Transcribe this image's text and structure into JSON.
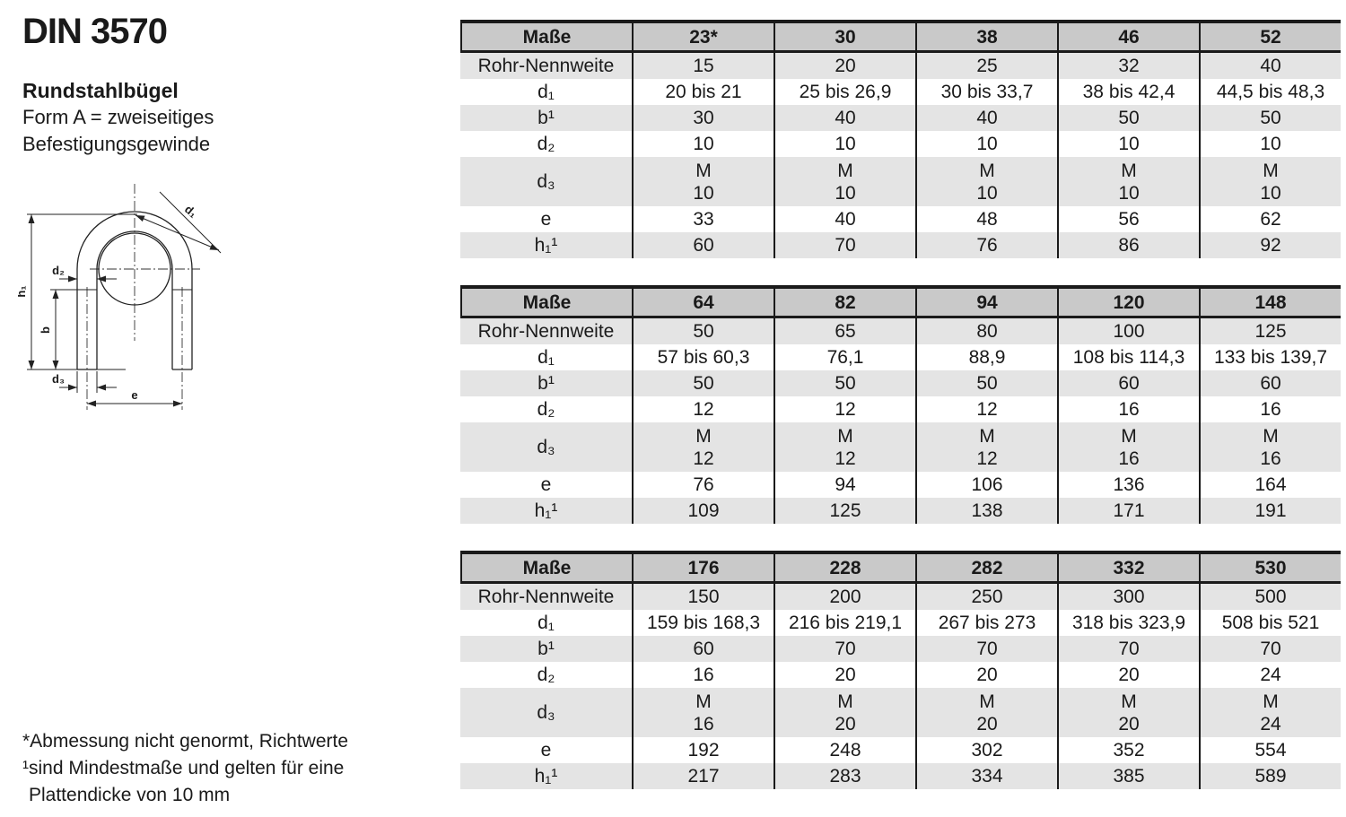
{
  "colors": {
    "header_bg": "#c9c9c9",
    "stripe_bg": "#e4e4e4",
    "line": "#1a1a1a",
    "text": "#1a1a1a"
  },
  "title": {
    "standard": "DIN 3570",
    "product": "Rundstahlbügel",
    "form_line1": "Form A = zweiseitiges",
    "form_line2": "Befestigungsgewinde"
  },
  "drawing": {
    "labels": {
      "h1": "h₁",
      "b": "b",
      "d2": "d₂",
      "d3": "d₃",
      "e": "e",
      "d1": "d₁"
    }
  },
  "footnotes": [
    "*Abmessung nicht genormt, Richtwerte",
    "¹sind Mindestmaße und gelten für eine",
    "Plattendicke von 10 mm"
  ],
  "tables": [
    {
      "header": [
        "Maße",
        "23*",
        "30",
        "38",
        "46",
        "52"
      ],
      "rows": [
        {
          "label": "Rohr-Nennweite",
          "values": [
            "15",
            "20",
            "25",
            "32",
            "40"
          ]
        },
        {
          "label": "d₁",
          "values": [
            "20 bis 21",
            "25 bis 26,9",
            "30 bis 33,7",
            "38 bis 42,4",
            "44,5 bis 48,3"
          ]
        },
        {
          "label": "b¹",
          "values": [
            "30",
            "40",
            "40",
            "50",
            "50"
          ]
        },
        {
          "label": "d₂",
          "values": [
            "10",
            "10",
            "10",
            "10",
            "10"
          ]
        },
        {
          "label": "d₃",
          "values": [
            "M\n10",
            "M\n10",
            "M\n10",
            "M\n10",
            "M\n10"
          ]
        },
        {
          "label": "e",
          "values": [
            "33",
            "40",
            "48",
            "56",
            "62"
          ]
        },
        {
          "label": "h₁¹",
          "values": [
            "60",
            "70",
            "76",
            "86",
            "92"
          ]
        }
      ]
    },
    {
      "header": [
        "Maße",
        "64",
        "82",
        "94",
        "120",
        "148"
      ],
      "rows": [
        {
          "label": "Rohr-Nennweite",
          "values": [
            "50",
            "65",
            "80",
            "100",
            "125"
          ]
        },
        {
          "label": "d₁",
          "values": [
            "57 bis 60,3",
            "76,1",
            "88,9",
            "108 bis 114,3",
            "133 bis 139,7"
          ]
        },
        {
          "label": "b¹",
          "values": [
            "50",
            "50",
            "50",
            "60",
            "60"
          ]
        },
        {
          "label": "d₂",
          "values": [
            "12",
            "12",
            "12",
            "16",
            "16"
          ]
        },
        {
          "label": "d₃",
          "values": [
            "M\n12",
            "M\n12",
            "M\n12",
            "M\n16",
            "M\n16"
          ]
        },
        {
          "label": "e",
          "values": [
            "76",
            "94",
            "106",
            "136",
            "164"
          ]
        },
        {
          "label": "h₁¹",
          "values": [
            "109",
            "125",
            "138",
            "171",
            "191"
          ]
        }
      ]
    },
    {
      "header": [
        "Maße",
        "176",
        "228",
        "282",
        "332",
        "530"
      ],
      "rows": [
        {
          "label": "Rohr-Nennweite",
          "values": [
            "150",
            "200",
            "250",
            "300",
            "500"
          ]
        },
        {
          "label": "d₁",
          "values": [
            "159 bis 168,3",
            "216 bis 219,1",
            "267 bis 273",
            "318 bis 323,9",
            "508 bis 521"
          ]
        },
        {
          "label": "b¹",
          "values": [
            "60",
            "70",
            "70",
            "70",
            "70"
          ]
        },
        {
          "label": "d₂",
          "values": [
            "16",
            "20",
            "20",
            "20",
            "24"
          ]
        },
        {
          "label": "d₃",
          "values": [
            "M\n16",
            "M\n20",
            "M\n20",
            "M\n20",
            "M\n24"
          ]
        },
        {
          "label": "e",
          "values": [
            "192",
            "248",
            "302",
            "352",
            "554"
          ]
        },
        {
          "label": "h₁¹",
          "values": [
            "217",
            "283",
            "334",
            "385",
            "589"
          ]
        }
      ]
    }
  ]
}
